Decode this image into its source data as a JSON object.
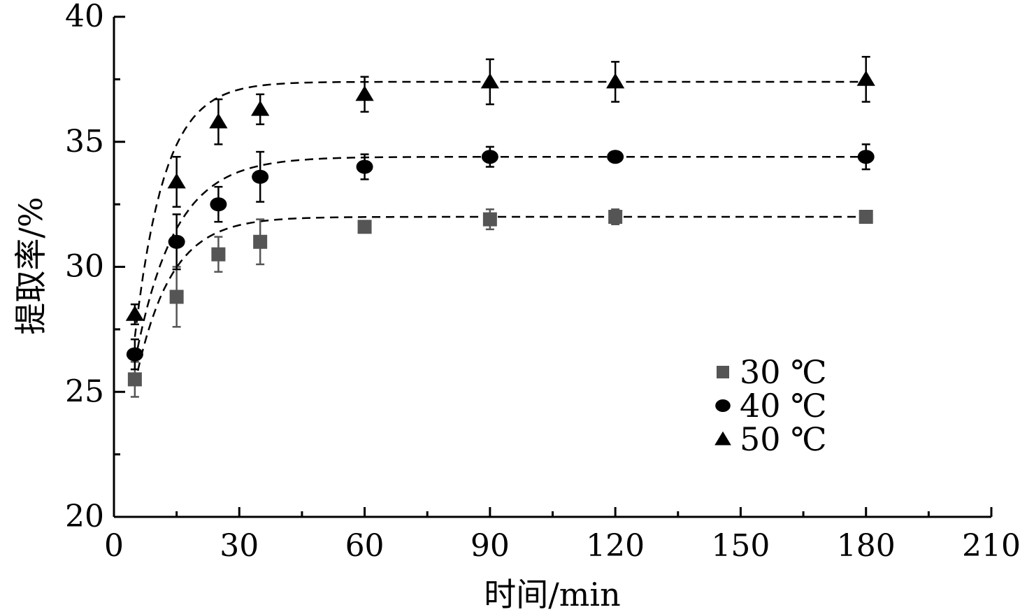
{
  "chart_data": {
    "type": "scatter",
    "title": "",
    "xlabel": "时间/min",
    "ylabel": "提取率/%",
    "xlim": [
      0,
      210
    ],
    "ylim": [
      20,
      40
    ],
    "x_ticks": [
      0,
      30,
      60,
      90,
      120,
      150,
      180,
      210
    ],
    "x_tick_labels": [
      "0",
      "30",
      "60",
      "90",
      "120",
      "150",
      "180",
      "210"
    ],
    "y_ticks": [
      20,
      25,
      30,
      35,
      40
    ],
    "y_tick_labels": [
      "20",
      "25",
      "30",
      "35",
      "40"
    ],
    "grid": false,
    "legend_position": "lower-right",
    "x": [
      5,
      15,
      25,
      35,
      60,
      90,
      120,
      180
    ],
    "series": [
      {
        "name": "30 ℃",
        "marker": "square",
        "color": "#555555",
        "values": [
          25.5,
          28.8,
          30.5,
          31.0,
          31.6,
          31.9,
          32.0,
          32.0
        ],
        "errors": [
          0.7,
          1.2,
          0.7,
          0.9,
          0.2,
          0.4,
          0.3,
          0.2
        ]
      },
      {
        "name": "40 ℃",
        "marker": "circle",
        "color": "#000000",
        "values": [
          26.5,
          31.0,
          32.5,
          33.6,
          34.0,
          34.4,
          34.4,
          34.4
        ],
        "errors": [
          0.6,
          1.1,
          0.7,
          1.0,
          0.5,
          0.4,
          0.0,
          0.5
        ]
      },
      {
        "name": "50 ℃",
        "marker": "triangle",
        "color": "#000000",
        "values": [
          28.1,
          33.4,
          35.8,
          36.3,
          36.9,
          37.4,
          37.4,
          37.5
        ],
        "errors": [
          0.4,
          1.0,
          0.9,
          0.6,
          0.7,
          0.9,
          0.8,
          0.9
        ]
      }
    ],
    "fit_curves": [
      {
        "series": "30 ℃",
        "asymptote": 32.0,
        "start": 25.3,
        "rate": 0.12
      },
      {
        "series": "40 ℃",
        "asymptote": 34.4,
        "start": 26.2,
        "rate": 0.105
      },
      {
        "series": "50 ℃",
        "asymptote": 37.4,
        "start": 27.2,
        "rate": 0.14
      }
    ]
  }
}
